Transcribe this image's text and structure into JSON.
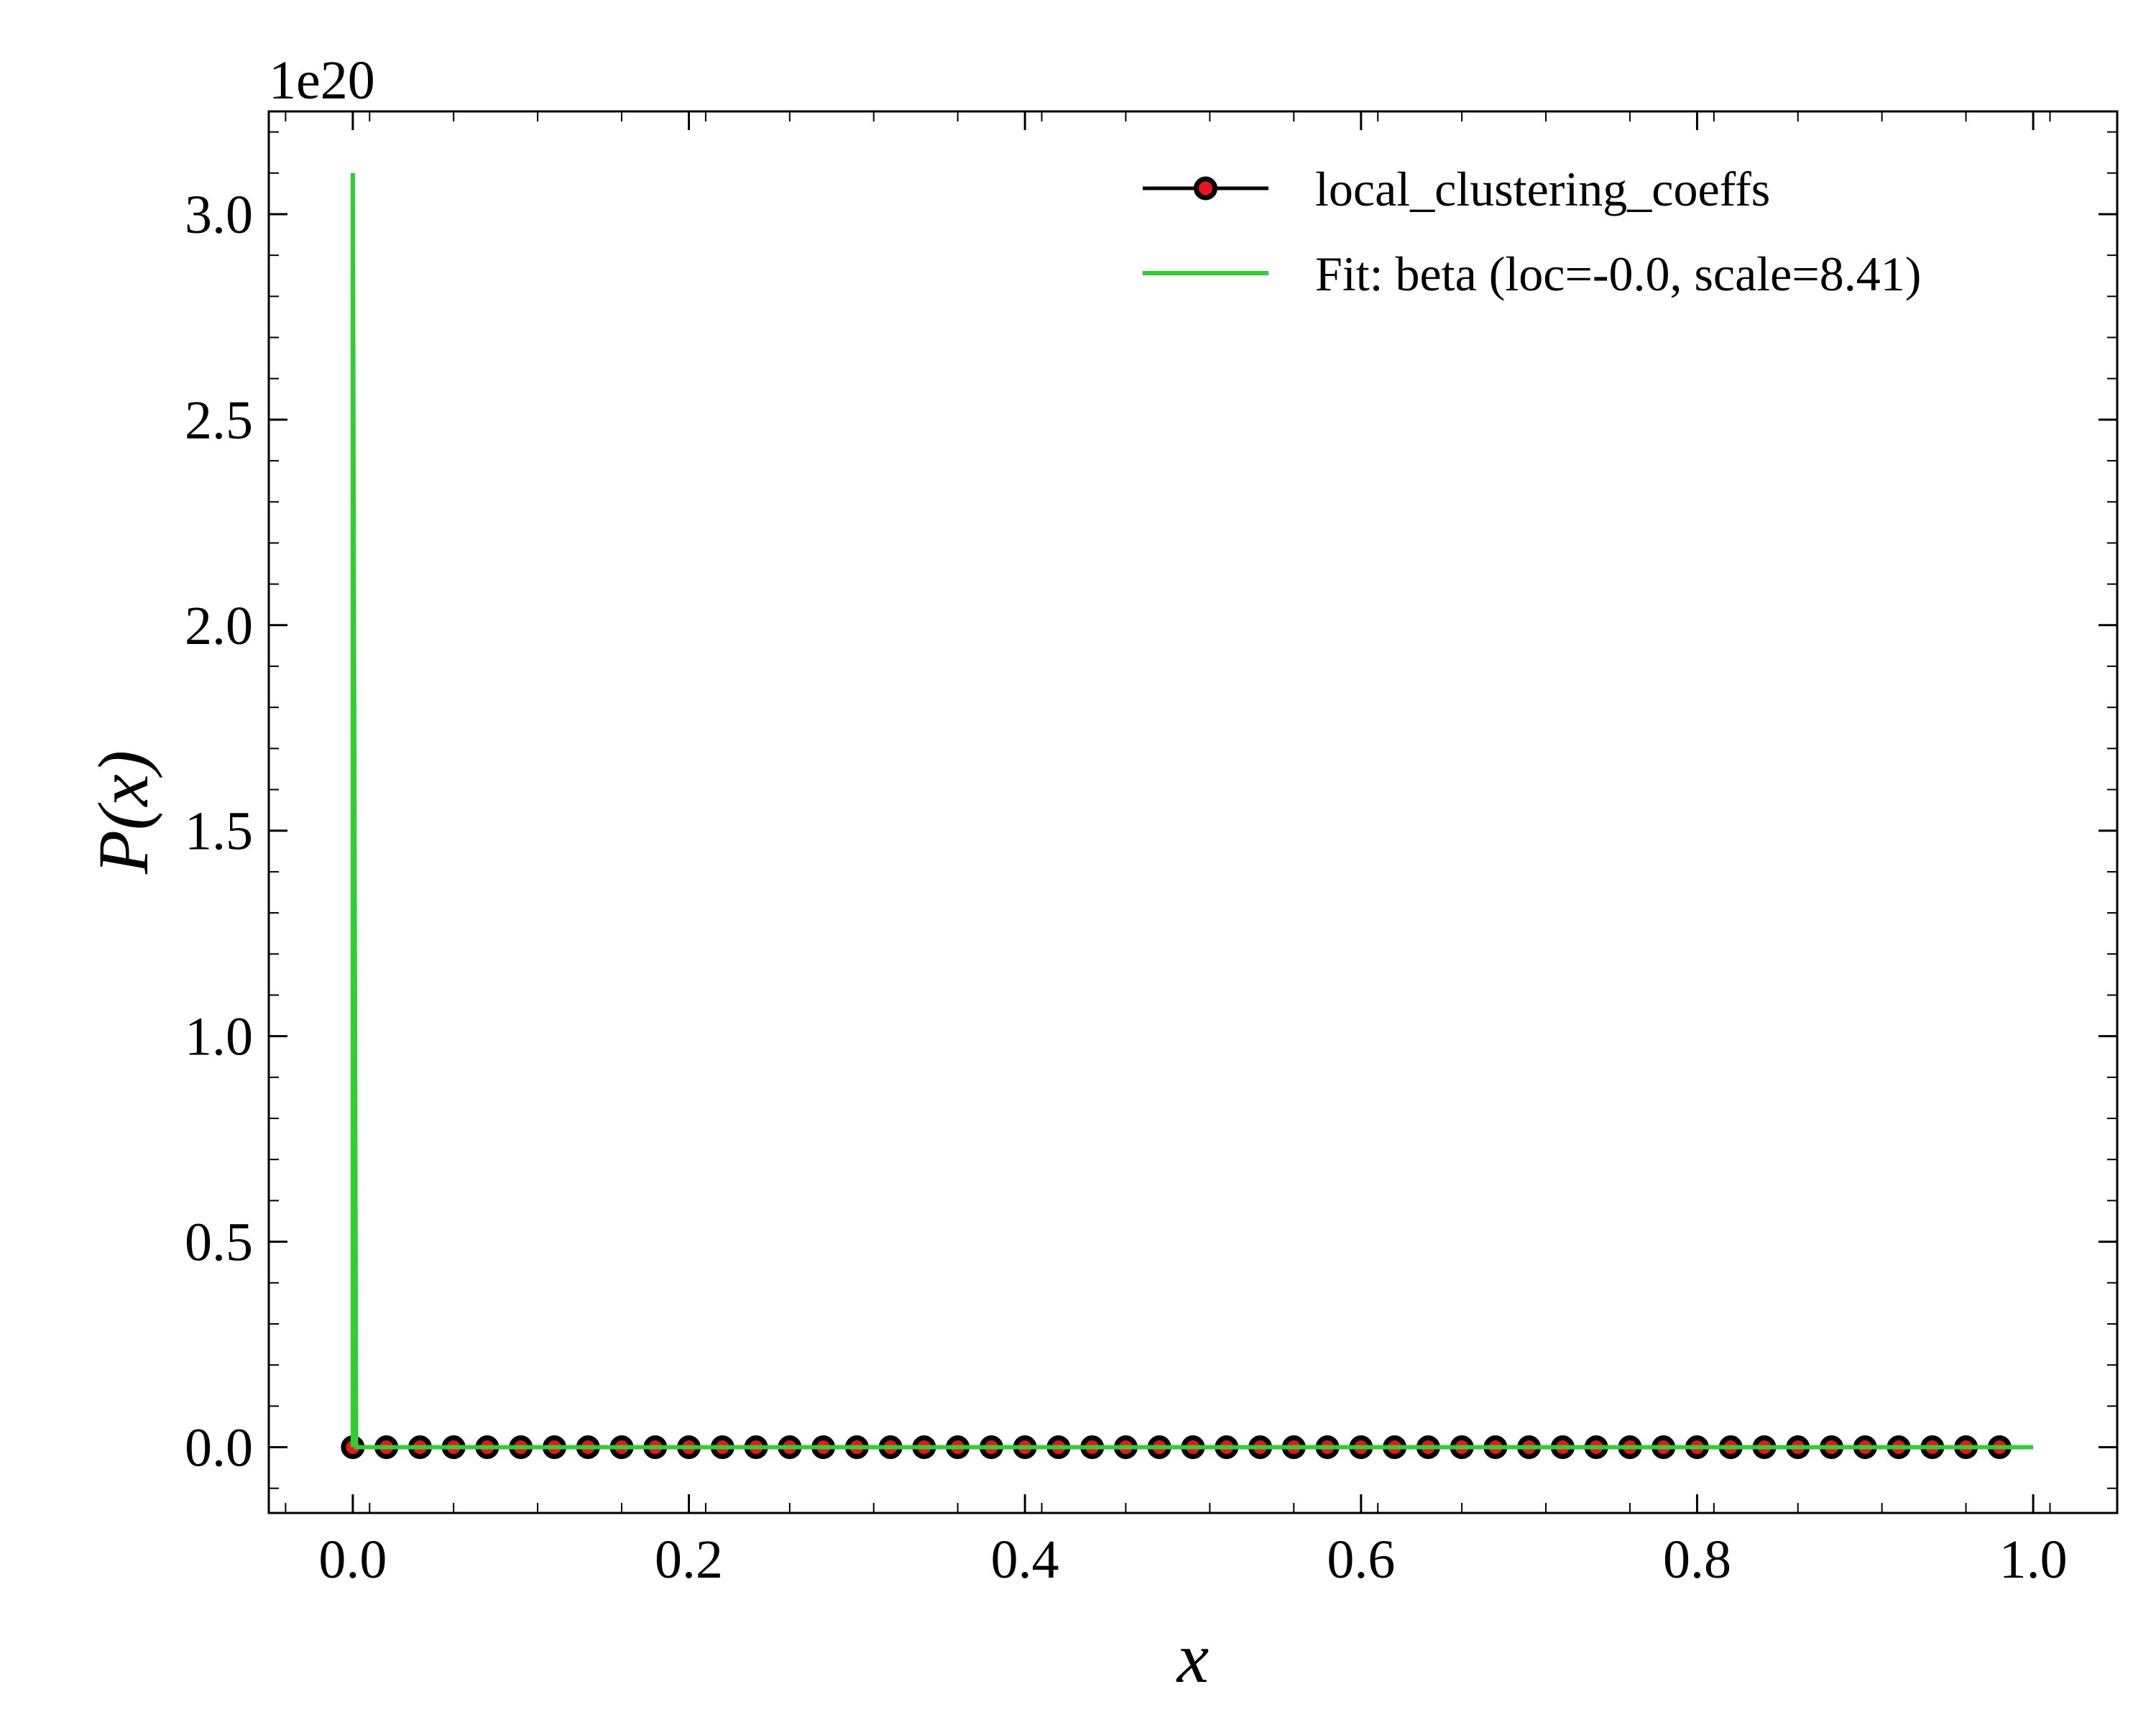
{
  "chart_data": {
    "type": "line",
    "xlabel": "x",
    "ylabel": "P(x)",
    "y_offset_label": "1e20",
    "y_multiplier": 1e+20,
    "xlim": [
      -0.05,
      1.05
    ],
    "ylim": [
      -0.16,
      3.25
    ],
    "x_ticks": [
      0.0,
      0.2,
      0.4,
      0.6,
      0.8,
      1.0
    ],
    "x_tick_labels": [
      "0.0",
      "0.2",
      "0.4",
      "0.6",
      "0.8",
      "1.0"
    ],
    "y_ticks": [
      0.0,
      0.5,
      1.0,
      1.5,
      2.0,
      2.5,
      3.0
    ],
    "y_tick_labels": [
      "0.0",
      "0.5",
      "1.0",
      "1.5",
      "2.0",
      "2.5",
      "3.0"
    ],
    "grid": false,
    "legend_position": "top-right",
    "series": [
      {
        "name": "local_clustering_coeffs",
        "style": "line-with-markers",
        "line_color": "#000000",
        "marker_fill": "#e8141e",
        "marker_edge": "#000000",
        "x": [
          0.0,
          0.02,
          0.04,
          0.06,
          0.08,
          0.1,
          0.12,
          0.14,
          0.16,
          0.18,
          0.2,
          0.22,
          0.24,
          0.26,
          0.28,
          0.3,
          0.32,
          0.34,
          0.36,
          0.38,
          0.4,
          0.42,
          0.44,
          0.46,
          0.48,
          0.5,
          0.52,
          0.54,
          0.56,
          0.58,
          0.6,
          0.62,
          0.64,
          0.66,
          0.68,
          0.7,
          0.72,
          0.74,
          0.76,
          0.78,
          0.8,
          0.82,
          0.84,
          0.86,
          0.88,
          0.9,
          0.92,
          0.94,
          0.96,
          0.98
        ],
        "y": [
          0,
          0,
          0,
          0,
          0,
          0,
          0,
          0,
          0,
          0,
          0,
          0,
          0,
          0,
          0,
          0,
          0,
          0,
          0,
          0,
          0,
          0,
          0,
          0,
          0,
          0,
          0,
          0,
          0,
          0,
          0,
          0,
          0,
          0,
          0,
          0,
          0,
          0,
          0,
          0,
          0,
          0,
          0,
          0,
          0,
          0,
          0,
          0,
          0,
          0
        ]
      },
      {
        "name": "Fit: beta (loc=-0.0, scale=8.41)",
        "style": "line",
        "line_color": "#32cd32",
        "x": [
          0.0,
          0.0,
          0.002,
          1.0
        ],
        "y": [
          0.0,
          3.1,
          0.0,
          0.0
        ]
      }
    ]
  }
}
